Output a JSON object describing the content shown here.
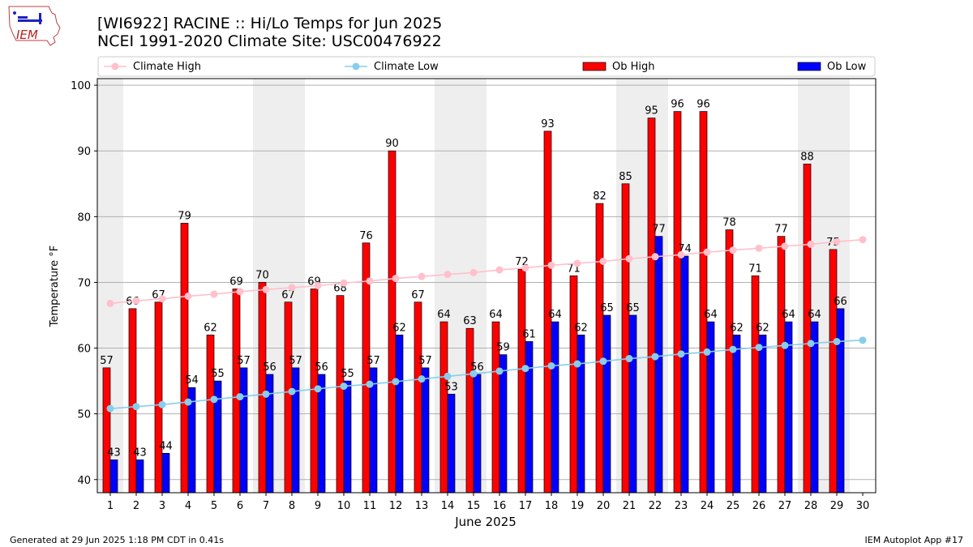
{
  "header": {
    "title_line1": "[WI6922] RACINE :: Hi/Lo Temps for Jun 2025",
    "title_line2": "NCEI 1991-2020 Climate Site: USC00476922",
    "logo_text": "IEM"
  },
  "footer": {
    "left": "Generated at 29 Jun 2025 1:18 PM CDT in 0.41s",
    "right": "IEM Autoplot App #17"
  },
  "colors": {
    "ob_high": "#ff0000",
    "ob_low": "#0000ff",
    "climate_high": "#ffc0cb",
    "climate_low": "#87ceeb",
    "weekend_shade": "#eeeeee",
    "grid": "#b0b0b0"
  },
  "chart_data": {
    "type": "bar",
    "xlabel": "June 2025",
    "ylabel": "Temperature °F",
    "ylim": [
      38,
      101
    ],
    "yticks": [
      40,
      50,
      60,
      70,
      80,
      90,
      100
    ],
    "grid": "horizontal",
    "legend_position": "top",
    "categories": [
      "1",
      "2",
      "3",
      "4",
      "5",
      "6",
      "7",
      "8",
      "9",
      "10",
      "11",
      "12",
      "13",
      "14",
      "15",
      "16",
      "17",
      "18",
      "19",
      "20",
      "21",
      "22",
      "23",
      "24",
      "25",
      "26",
      "27",
      "28",
      "29",
      "30"
    ],
    "shaded_days": [
      1,
      7,
      8,
      14,
      15,
      21,
      22,
      28,
      29
    ],
    "series": [
      {
        "name": "Ob High",
        "type": "bar",
        "values": [
          57,
          66,
          67,
          79,
          62,
          69,
          70,
          67,
          69,
          68,
          76,
          90,
          67,
          64,
          63,
          64,
          72,
          93,
          71,
          82,
          85,
          95,
          96,
          96,
          78,
          71,
          77,
          88,
          75,
          null
        ]
      },
      {
        "name": "Ob Low",
        "type": "bar",
        "values": [
          43,
          43,
          44,
          54,
          55,
          57,
          56,
          57,
          56,
          55,
          57,
          62,
          57,
          53,
          56,
          59,
          61,
          64,
          62,
          65,
          65,
          77,
          74,
          64,
          62,
          62,
          64,
          64,
          66,
          null
        ]
      },
      {
        "name": "Climate High",
        "type": "line",
        "values": [
          66.8,
          67.2,
          67.5,
          67.9,
          68.2,
          68.6,
          68.9,
          69.2,
          69.5,
          69.9,
          70.2,
          70.6,
          70.9,
          71.2,
          71.5,
          71.9,
          72.2,
          72.6,
          72.9,
          73.2,
          73.6,
          73.9,
          74.2,
          74.6,
          74.9,
          75.2,
          75.5,
          75.8,
          76.2,
          76.5
        ]
      },
      {
        "name": "Climate Low",
        "type": "line",
        "values": [
          50.8,
          51.1,
          51.4,
          51.8,
          52.2,
          52.6,
          53.0,
          53.4,
          53.8,
          54.2,
          54.5,
          54.9,
          55.3,
          55.7,
          56.1,
          56.5,
          56.9,
          57.3,
          57.6,
          58.0,
          58.4,
          58.7,
          59.1,
          59.4,
          59.8,
          60.1,
          60.4,
          60.7,
          61.0,
          61.2
        ]
      }
    ],
    "legend": [
      "Climate High",
      "Climate Low",
      "Ob High",
      "Ob Low"
    ]
  }
}
